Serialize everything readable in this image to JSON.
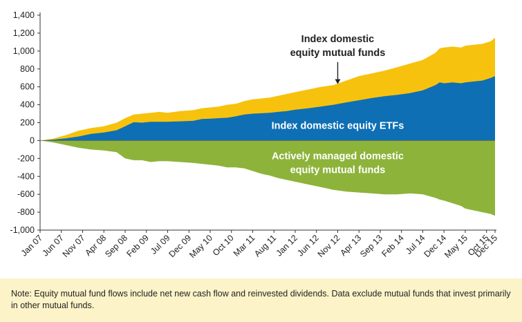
{
  "colors": {
    "index_mutual_funds": "#f7c20e",
    "index_etfs": "#0e6fb5",
    "active_funds": "#8db33a",
    "note_background": "#fdf3c8"
  },
  "chart_data": {
    "type": "area",
    "y_ticks": [
      "1,400",
      "1,200",
      "1,000",
      "800",
      "600",
      "400",
      "200",
      "0",
      "-200",
      "-400",
      "-600",
      "-800",
      "-1,000"
    ],
    "ylim": [
      -1000,
      1400
    ],
    "x_tick_labels": [
      "Jan 07",
      "Jun 07",
      "Nov 07",
      "Apr 08",
      "Sep 08",
      "Feb 09",
      "Jul 09",
      "Dec 09",
      "May 10",
      "Oct 10",
      "Mar 11",
      "Aug 11",
      "Jan 12",
      "Jun 12",
      "Nov 12",
      "Apr 13",
      "Sep 13",
      "Feb 14",
      "Jul 14",
      "Dec 14",
      "May 15",
      "Oct 15",
      "Dec 15"
    ],
    "x_tick_index": [
      0,
      5,
      10,
      15,
      20,
      25,
      30,
      35,
      40,
      45,
      50,
      55,
      60,
      65,
      70,
      75,
      80,
      85,
      90,
      95,
      100,
      105,
      107
    ],
    "x_range": [
      0,
      107
    ],
    "x_note": "x values are month indices starting Jan 07 = 0",
    "grid": false,
    "series": [
      {
        "name": "Index domestic equity ETFs",
        "x": [
          0,
          3,
          6,
          9,
          12,
          15,
          18,
          20,
          22,
          24,
          26,
          28,
          30,
          33,
          36,
          38,
          40,
          42,
          44,
          46,
          48,
          50,
          52,
          54,
          56,
          58,
          60,
          63,
          66,
          69,
          72,
          75,
          78,
          81,
          84,
          87,
          90,
          93,
          94,
          95,
          97,
          99,
          100,
          102,
          104,
          106,
          107
        ],
        "values": [
          0,
          10,
          25,
          45,
          75,
          90,
          115,
          160,
          205,
          200,
          210,
          210,
          210,
          215,
          220,
          240,
          245,
          250,
          255,
          270,
          290,
          300,
          305,
          310,
          320,
          330,
          345,
          360,
          380,
          400,
          425,
          450,
          475,
          495,
          510,
          530,
          560,
          620,
          650,
          640,
          650,
          640,
          650,
          660,
          670,
          700,
          720
        ]
      },
      {
        "name": "Index domestic equity mutual funds",
        "x": [
          0,
          3,
          6,
          9,
          12,
          15,
          18,
          20,
          22,
          24,
          26,
          28,
          30,
          33,
          36,
          38,
          40,
          42,
          44,
          46,
          48,
          50,
          52,
          54,
          56,
          58,
          60,
          63,
          66,
          69,
          72,
          75,
          78,
          81,
          84,
          87,
          90,
          93,
          94,
          95,
          97,
          99,
          100,
          102,
          104,
          106,
          107
        ],
        "values": [
          0,
          20,
          60,
          110,
          140,
          160,
          200,
          250,
          290,
          300,
          310,
          320,
          310,
          330,
          340,
          360,
          370,
          380,
          400,
          410,
          440,
          460,
          470,
          480,
          500,
          520,
          540,
          570,
          600,
          620,
          670,
          720,
          750,
          780,
          820,
          860,
          900,
          980,
          1030,
          1040,
          1050,
          1040,
          1060,
          1070,
          1080,
          1110,
          1150
        ]
      },
      {
        "name": "Actively managed domestic equity mutual funds",
        "x": [
          0,
          3,
          6,
          9,
          12,
          15,
          18,
          20,
          22,
          24,
          26,
          28,
          30,
          33,
          36,
          38,
          40,
          42,
          44,
          46,
          48,
          50,
          52,
          54,
          56,
          58,
          60,
          63,
          66,
          69,
          72,
          75,
          78,
          81,
          84,
          87,
          90,
          93,
          94,
          95,
          97,
          99,
          100,
          102,
          104,
          106,
          107
        ],
        "values": [
          0,
          -20,
          -50,
          -80,
          -100,
          -110,
          -130,
          -200,
          -220,
          -220,
          -240,
          -230,
          -230,
          -240,
          -250,
          -260,
          -270,
          -280,
          -300,
          -300,
          -310,
          -340,
          -370,
          -390,
          -420,
          -440,
          -460,
          -490,
          -520,
          -550,
          -570,
          -580,
          -590,
          -600,
          -600,
          -590,
          -600,
          -640,
          -660,
          -670,
          -700,
          -730,
          -760,
          -780,
          -800,
          -820,
          -840
        ]
      }
    ],
    "annotations": [
      {
        "lines": [
          "Index domestic",
          "equity mutual funds"
        ],
        "x": 70,
        "y": 1100,
        "arrow_to": {
          "x": 70,
          "y": 600
        }
      },
      {
        "lines": [
          "Index domestic equity ETFs"
        ],
        "x": 70,
        "y": 130
      },
      {
        "lines": [
          "Actively managed domestic",
          "equity mutual funds"
        ],
        "x": 70,
        "y": -210
      }
    ]
  },
  "note": "Note: Equity mutual fund flows include net new cash flow and reinvested dividends. Data exclude mutual funds that invest primarily in other mutual funds."
}
